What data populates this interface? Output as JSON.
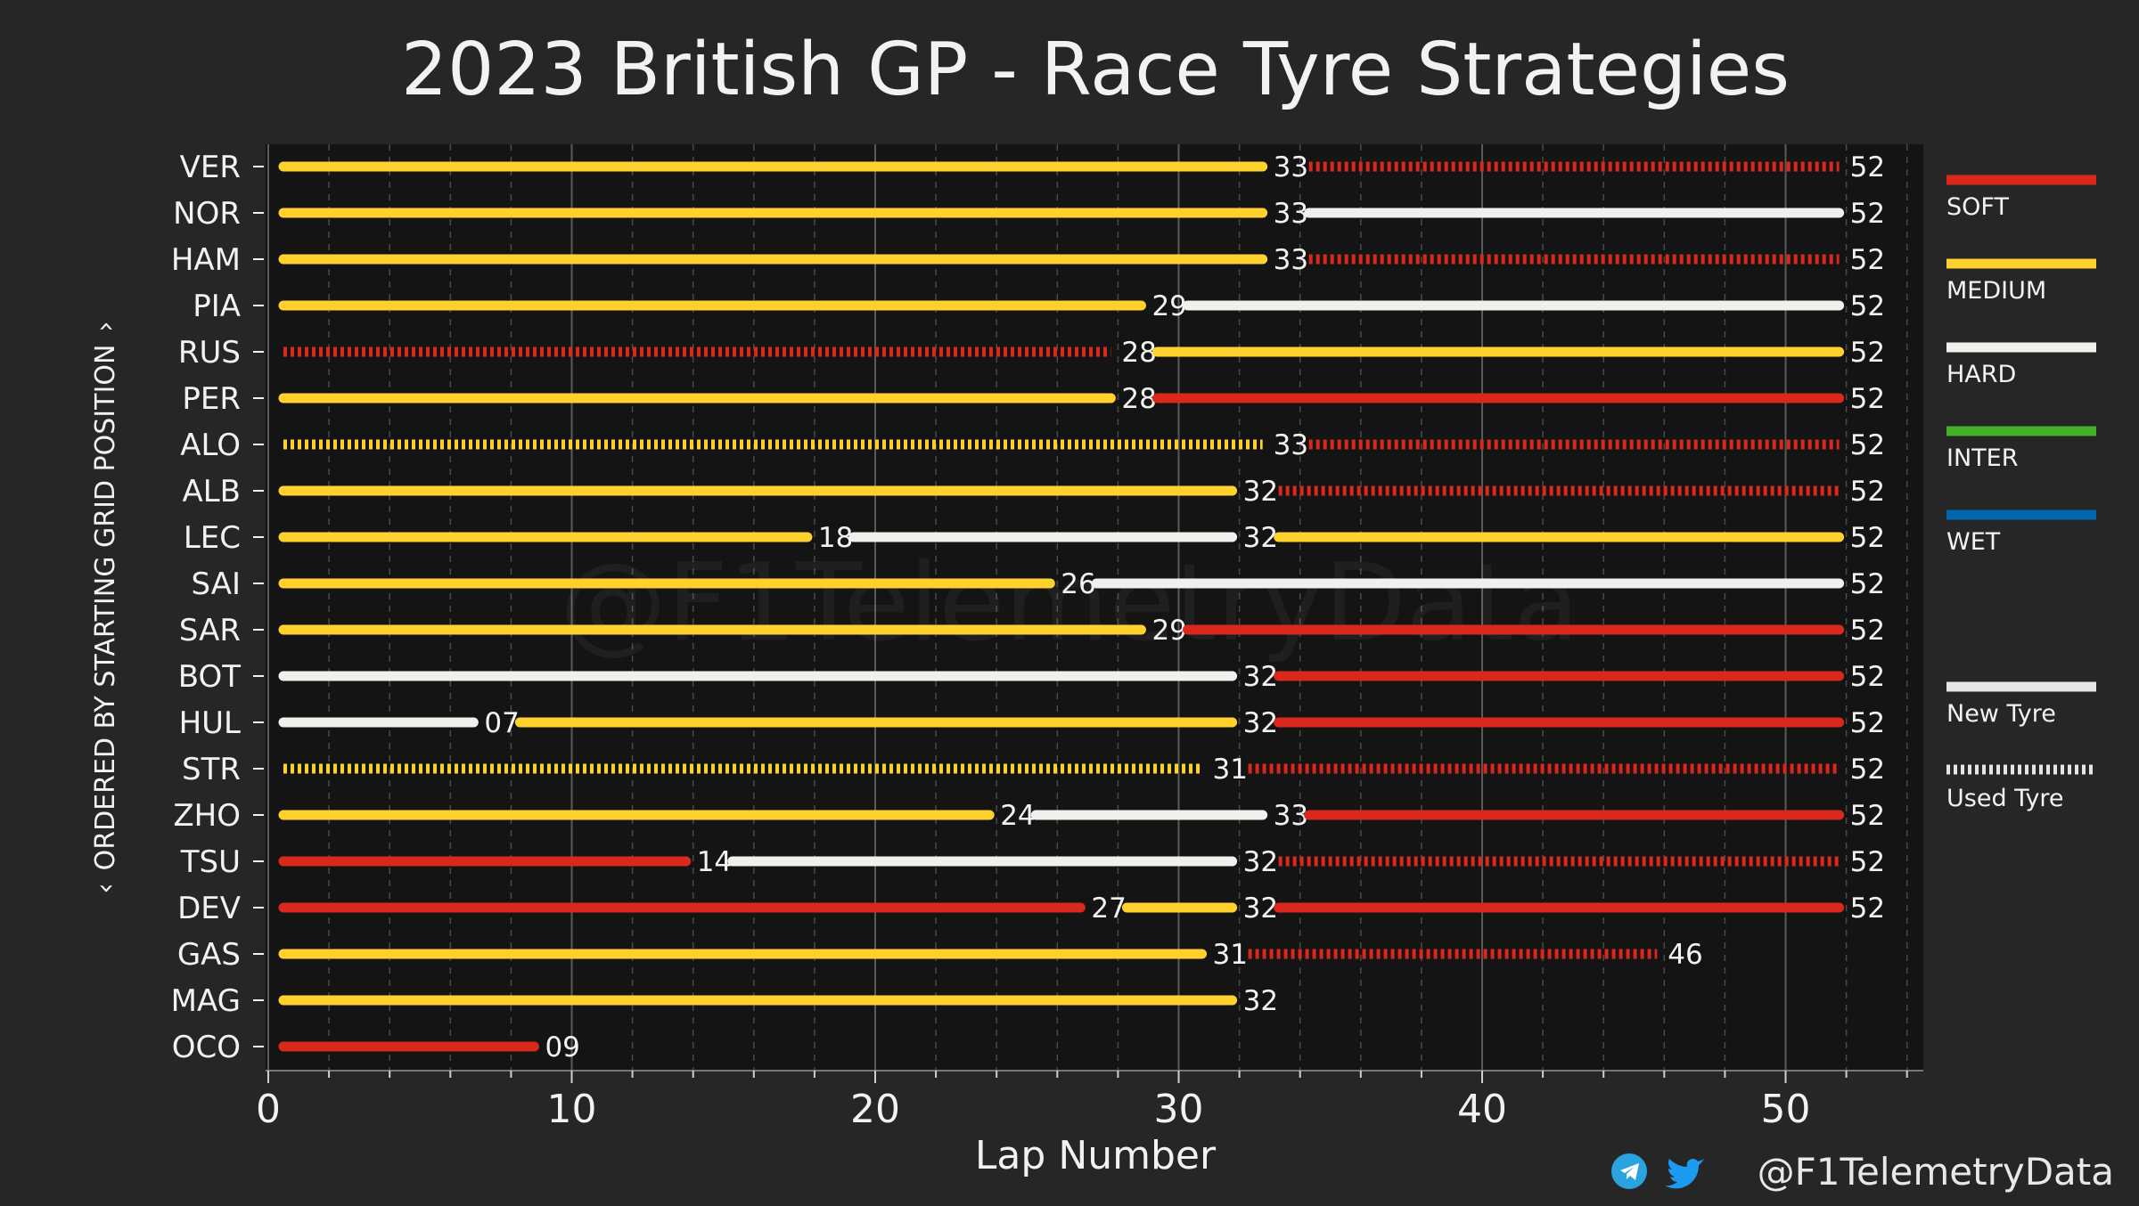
{
  "chart_data": {
    "type": "bar",
    "title": "2023 British GP - Race Tyre Strategies",
    "xlabel": "Lap Number",
    "ylabel": "ORDERED BY STARTING GRID POSITION",
    "ylabel_arrow": "‹",
    "ylabel_arrow_end": "›",
    "xlim": [
      0,
      54.5
    ],
    "xticks": [
      0,
      10,
      20,
      30,
      40,
      50
    ],
    "xticks_minor_step": 2,
    "grid": true,
    "legend_position": "right",
    "watermark": "@F1TelemetryData",
    "compound_colors": {
      "SOFT": "#da291c",
      "MEDIUM": "#ffd12e",
      "HARD": "#f0f0ec",
      "INTER": "#43b02a",
      "WET": "#0067ad"
    },
    "legend": {
      "compounds": [
        "SOFT",
        "MEDIUM",
        "HARD",
        "INTER",
        "WET"
      ],
      "new_tyre": "New Tyre",
      "used_tyre": "Used Tyre"
    },
    "drivers": [
      {
        "name": "VER",
        "stints": [
          {
            "compound": "MEDIUM",
            "end": 33,
            "used": false,
            "label": "33"
          },
          {
            "compound": "SOFT",
            "end": 52,
            "used": true,
            "label": "52"
          }
        ]
      },
      {
        "name": "NOR",
        "stints": [
          {
            "compound": "MEDIUM",
            "end": 33,
            "used": false,
            "label": "33"
          },
          {
            "compound": "HARD",
            "end": 52,
            "used": false,
            "label": "52"
          }
        ]
      },
      {
        "name": "HAM",
        "stints": [
          {
            "compound": "MEDIUM",
            "end": 33,
            "used": false,
            "label": "33"
          },
          {
            "compound": "SOFT",
            "end": 52,
            "used": true,
            "label": "52"
          }
        ]
      },
      {
        "name": "PIA",
        "stints": [
          {
            "compound": "MEDIUM",
            "end": 29,
            "used": false,
            "label": "29"
          },
          {
            "compound": "HARD",
            "end": 52,
            "used": false,
            "label": "52"
          }
        ]
      },
      {
        "name": "RUS",
        "stints": [
          {
            "compound": "SOFT",
            "end": 28,
            "used": true,
            "label": "28"
          },
          {
            "compound": "MEDIUM",
            "end": 52,
            "used": false,
            "label": "52"
          }
        ]
      },
      {
        "name": "PER",
        "stints": [
          {
            "compound": "MEDIUM",
            "end": 28,
            "used": false,
            "label": "28"
          },
          {
            "compound": "SOFT",
            "end": 52,
            "used": false,
            "label": "52"
          }
        ]
      },
      {
        "name": "ALO",
        "stints": [
          {
            "compound": "MEDIUM",
            "end": 33,
            "used": true,
            "label": "33"
          },
          {
            "compound": "SOFT",
            "end": 52,
            "used": true,
            "label": "52"
          }
        ]
      },
      {
        "name": "ALB",
        "stints": [
          {
            "compound": "MEDIUM",
            "end": 32,
            "used": false,
            "label": "32"
          },
          {
            "compound": "SOFT",
            "end": 52,
            "used": true,
            "label": "52"
          }
        ]
      },
      {
        "name": "LEC",
        "stints": [
          {
            "compound": "MEDIUM",
            "end": 18,
            "used": false,
            "label": "18"
          },
          {
            "compound": "HARD",
            "end": 32,
            "used": false,
            "label": "32"
          },
          {
            "compound": "MEDIUM",
            "end": 52,
            "used": false,
            "label": "52"
          }
        ]
      },
      {
        "name": "SAI",
        "stints": [
          {
            "compound": "MEDIUM",
            "end": 26,
            "used": false,
            "label": "26"
          },
          {
            "compound": "HARD",
            "end": 52,
            "used": false,
            "label": "52"
          }
        ]
      },
      {
        "name": "SAR",
        "stints": [
          {
            "compound": "MEDIUM",
            "end": 29,
            "used": false,
            "label": "29"
          },
          {
            "compound": "SOFT",
            "end": 52,
            "used": false,
            "label": "52"
          }
        ]
      },
      {
        "name": "BOT",
        "stints": [
          {
            "compound": "HARD",
            "end": 32,
            "used": false,
            "label": "32"
          },
          {
            "compound": "SOFT",
            "end": 52,
            "used": false,
            "label": "52"
          }
        ]
      },
      {
        "name": "HUL",
        "stints": [
          {
            "compound": "HARD",
            "end": 7,
            "used": false,
            "label": "07"
          },
          {
            "compound": "MEDIUM",
            "end": 32,
            "used": false,
            "label": "32"
          },
          {
            "compound": "SOFT",
            "end": 52,
            "used": false,
            "label": "52"
          }
        ]
      },
      {
        "name": "STR",
        "stints": [
          {
            "compound": "MEDIUM",
            "end": 31,
            "used": true,
            "label": "31"
          },
          {
            "compound": "SOFT",
            "end": 52,
            "used": true,
            "label": "52"
          }
        ]
      },
      {
        "name": "ZHO",
        "stints": [
          {
            "compound": "MEDIUM",
            "end": 24,
            "used": false,
            "label": "24"
          },
          {
            "compound": "HARD",
            "end": 33,
            "used": false,
            "label": "33"
          },
          {
            "compound": "SOFT",
            "end": 52,
            "used": false,
            "label": "52"
          }
        ]
      },
      {
        "name": "TSU",
        "stints": [
          {
            "compound": "SOFT",
            "end": 14,
            "used": false,
            "label": "14"
          },
          {
            "compound": "HARD",
            "end": 32,
            "used": false,
            "label": "32"
          },
          {
            "compound": "SOFT",
            "end": 52,
            "used": true,
            "label": "52"
          }
        ]
      },
      {
        "name": "DEV",
        "stints": [
          {
            "compound": "SOFT",
            "end": 27,
            "used": false,
            "label": "27"
          },
          {
            "compound": "MEDIUM",
            "end": 32,
            "used": false,
            "label": "32"
          },
          {
            "compound": "SOFT",
            "end": 52,
            "used": false,
            "label": "52"
          }
        ]
      },
      {
        "name": "GAS",
        "stints": [
          {
            "compound": "MEDIUM",
            "end": 31,
            "used": false,
            "label": "31"
          },
          {
            "compound": "SOFT",
            "end": 46,
            "used": true,
            "label": "46"
          }
        ]
      },
      {
        "name": "MAG",
        "stints": [
          {
            "compound": "MEDIUM",
            "end": 32,
            "used": false,
            "label": "32"
          }
        ]
      },
      {
        "name": "OCO",
        "stints": [
          {
            "compound": "SOFT",
            "end": 9,
            "used": false,
            "label": "09"
          }
        ]
      }
    ]
  },
  "footer": {
    "handle": "@F1TelemetryData",
    "icons": [
      "telegram-icon",
      "twitter-icon"
    ]
  }
}
